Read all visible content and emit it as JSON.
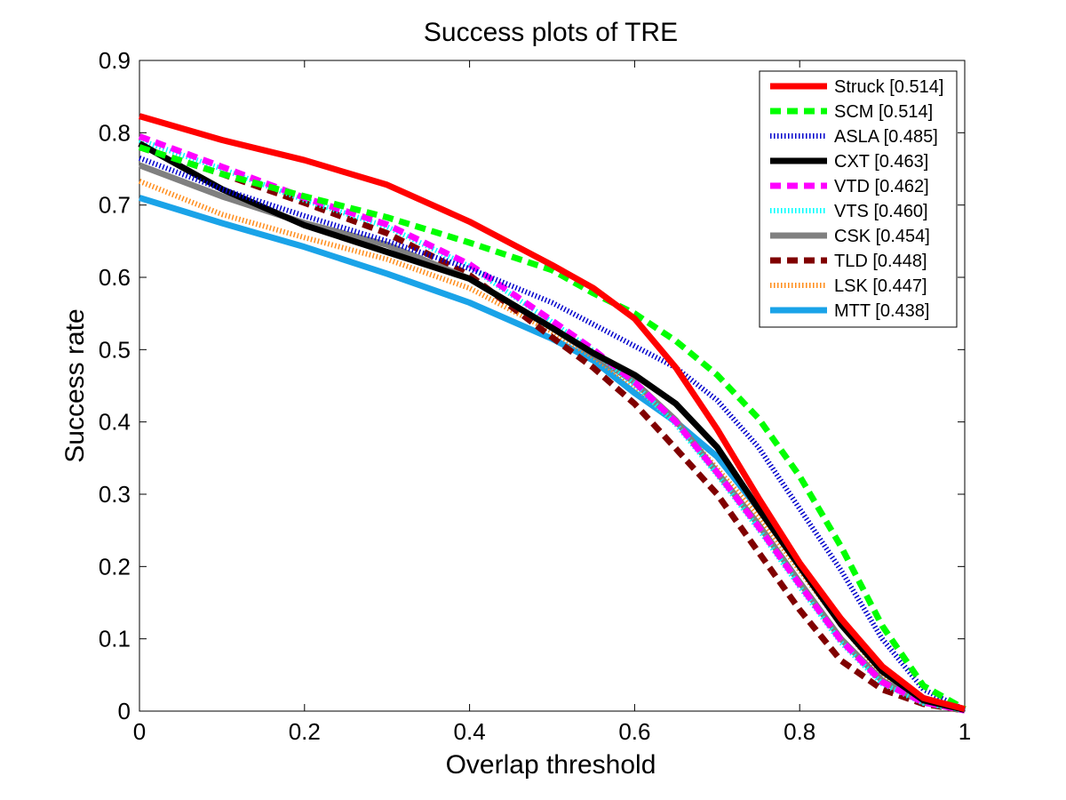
{
  "chart_data": {
    "type": "line",
    "title": "Success plots of TRE",
    "xlabel": "Overlap threshold",
    "ylabel": "Success rate",
    "xlim": [
      0,
      1
    ],
    "ylim": [
      0,
      0.9
    ],
    "xticks": [
      "0",
      "0.2",
      "0.4",
      "0.6",
      "0.8",
      "1"
    ],
    "yticks": [
      "0",
      "0.1",
      "0.2",
      "0.3",
      "0.4",
      "0.5",
      "0.6",
      "0.7",
      "0.8",
      "0.9"
    ],
    "grid": false,
    "legend_position": "top-right",
    "series": [
      {
        "name": "Struck [0.514]",
        "color": "#ff0000",
        "style": "solid",
        "points": [
          [
            0,
            0.823
          ],
          [
            0.1,
            0.79
          ],
          [
            0.2,
            0.762
          ],
          [
            0.3,
            0.728
          ],
          [
            0.4,
            0.677
          ],
          [
            0.5,
            0.617
          ],
          [
            0.55,
            0.585
          ],
          [
            0.6,
            0.543
          ],
          [
            0.65,
            0.475
          ],
          [
            0.7,
            0.39
          ],
          [
            0.75,
            0.295
          ],
          [
            0.8,
            0.205
          ],
          [
            0.85,
            0.128
          ],
          [
            0.9,
            0.062
          ],
          [
            0.95,
            0.018
          ],
          [
            1,
            0.003
          ]
        ]
      },
      {
        "name": "SCM [0.514]",
        "color": "#00ff00",
        "style": "dashed",
        "points": [
          [
            0,
            0.78
          ],
          [
            0.1,
            0.743
          ],
          [
            0.2,
            0.712
          ],
          [
            0.3,
            0.683
          ],
          [
            0.4,
            0.648
          ],
          [
            0.5,
            0.61
          ],
          [
            0.55,
            0.578
          ],
          [
            0.6,
            0.55
          ],
          [
            0.65,
            0.512
          ],
          [
            0.7,
            0.465
          ],
          [
            0.75,
            0.405
          ],
          [
            0.8,
            0.325
          ],
          [
            0.85,
            0.228
          ],
          [
            0.9,
            0.118
          ],
          [
            0.95,
            0.035
          ],
          [
            1,
            0.003
          ]
        ]
      },
      {
        "name": "ASLA [0.485]",
        "color": "#0000cc",
        "style": "dotted",
        "points": [
          [
            0,
            0.765
          ],
          [
            0.1,
            0.722
          ],
          [
            0.2,
            0.685
          ],
          [
            0.3,
            0.65
          ],
          [
            0.4,
            0.612
          ],
          [
            0.5,
            0.565
          ],
          [
            0.55,
            0.535
          ],
          [
            0.6,
            0.505
          ],
          [
            0.65,
            0.475
          ],
          [
            0.7,
            0.43
          ],
          [
            0.75,
            0.365
          ],
          [
            0.8,
            0.28
          ],
          [
            0.85,
            0.195
          ],
          [
            0.9,
            0.1
          ],
          [
            0.95,
            0.03
          ],
          [
            1,
            0.002
          ]
        ]
      },
      {
        "name": "CXT [0.463]",
        "color": "#000000",
        "style": "solid",
        "points": [
          [
            0,
            0.785
          ],
          [
            0.1,
            0.722
          ],
          [
            0.2,
            0.672
          ],
          [
            0.3,
            0.635
          ],
          [
            0.4,
            0.598
          ],
          [
            0.5,
            0.53
          ],
          [
            0.55,
            0.495
          ],
          [
            0.6,
            0.465
          ],
          [
            0.65,
            0.425
          ],
          [
            0.7,
            0.365
          ],
          [
            0.75,
            0.28
          ],
          [
            0.8,
            0.2
          ],
          [
            0.85,
            0.12
          ],
          [
            0.9,
            0.055
          ],
          [
            0.95,
            0.015
          ],
          [
            1,
            0.002
          ]
        ]
      },
      {
        "name": "VTD [0.462]",
        "color": "#ff00ff",
        "style": "dashed",
        "points": [
          [
            0,
            0.795
          ],
          [
            0.1,
            0.753
          ],
          [
            0.2,
            0.71
          ],
          [
            0.3,
            0.673
          ],
          [
            0.4,
            0.618
          ],
          [
            0.5,
            0.54
          ],
          [
            0.55,
            0.5
          ],
          [
            0.6,
            0.455
          ],
          [
            0.65,
            0.4
          ],
          [
            0.7,
            0.33
          ],
          [
            0.75,
            0.255
          ],
          [
            0.8,
            0.175
          ],
          [
            0.85,
            0.098
          ],
          [
            0.9,
            0.04
          ],
          [
            0.95,
            0.012
          ],
          [
            1,
            0.001
          ]
        ]
      },
      {
        "name": "VTS [0.460]",
        "color": "#00ffff",
        "style": "dotted",
        "points": [
          [
            0,
            0.79
          ],
          [
            0.1,
            0.75
          ],
          [
            0.2,
            0.707
          ],
          [
            0.3,
            0.67
          ],
          [
            0.4,
            0.615
          ],
          [
            0.5,
            0.538
          ],
          [
            0.55,
            0.498
          ],
          [
            0.6,
            0.452
          ],
          [
            0.65,
            0.397
          ],
          [
            0.7,
            0.327
          ],
          [
            0.75,
            0.252
          ],
          [
            0.8,
            0.172
          ],
          [
            0.85,
            0.095
          ],
          [
            0.9,
            0.038
          ],
          [
            0.95,
            0.011
          ],
          [
            1,
            0.001
          ]
        ]
      },
      {
        "name": "CSK [0.454]",
        "color": "#808080",
        "style": "solid",
        "points": [
          [
            0,
            0.755
          ],
          [
            0.1,
            0.712
          ],
          [
            0.2,
            0.675
          ],
          [
            0.3,
            0.645
          ],
          [
            0.4,
            0.598
          ],
          [
            0.5,
            0.53
          ],
          [
            0.55,
            0.493
          ],
          [
            0.6,
            0.455
          ],
          [
            0.65,
            0.402
          ],
          [
            0.7,
            0.33
          ],
          [
            0.75,
            0.258
          ],
          [
            0.8,
            0.178
          ],
          [
            0.85,
            0.1
          ],
          [
            0.9,
            0.042
          ],
          [
            0.95,
            0.012
          ],
          [
            1,
            0.001
          ]
        ]
      },
      {
        "name": "TLD [0.448]",
        "color": "#800000",
        "style": "dashed",
        "points": [
          [
            0,
            0.78
          ],
          [
            0.1,
            0.743
          ],
          [
            0.2,
            0.703
          ],
          [
            0.3,
            0.661
          ],
          [
            0.4,
            0.603
          ],
          [
            0.5,
            0.517
          ],
          [
            0.55,
            0.475
          ],
          [
            0.6,
            0.425
          ],
          [
            0.65,
            0.363
          ],
          [
            0.7,
            0.3
          ],
          [
            0.75,
            0.22
          ],
          [
            0.8,
            0.14
          ],
          [
            0.85,
            0.07
          ],
          [
            0.9,
            0.03
          ],
          [
            0.95,
            0.01
          ],
          [
            1,
            0.001
          ]
        ]
      },
      {
        "name": "LSK [0.447]",
        "color": "#ff8c1a",
        "style": "dotted",
        "points": [
          [
            0,
            0.733
          ],
          [
            0.1,
            0.687
          ],
          [
            0.2,
            0.655
          ],
          [
            0.3,
            0.625
          ],
          [
            0.4,
            0.585
          ],
          [
            0.5,
            0.525
          ],
          [
            0.55,
            0.49
          ],
          [
            0.6,
            0.45
          ],
          [
            0.65,
            0.4
          ],
          [
            0.7,
            0.335
          ],
          [
            0.75,
            0.27
          ],
          [
            0.8,
            0.195
          ],
          [
            0.85,
            0.12
          ],
          [
            0.9,
            0.05
          ],
          [
            0.95,
            0.015
          ],
          [
            1,
            0.002
          ]
        ]
      },
      {
        "name": "MTT [0.438]",
        "color": "#1aa3e8",
        "style": "solid",
        "points": [
          [
            0,
            0.71
          ],
          [
            0.1,
            0.675
          ],
          [
            0.2,
            0.642
          ],
          [
            0.3,
            0.605
          ],
          [
            0.4,
            0.565
          ],
          [
            0.5,
            0.515
          ],
          [
            0.55,
            0.485
          ],
          [
            0.6,
            0.44
          ],
          [
            0.65,
            0.4
          ],
          [
            0.7,
            0.352
          ],
          [
            0.75,
            0.28
          ],
          [
            0.8,
            0.2
          ],
          [
            0.85,
            0.123
          ],
          [
            0.9,
            0.06
          ],
          [
            0.95,
            0.018
          ],
          [
            1,
            0.002
          ]
        ]
      }
    ]
  }
}
